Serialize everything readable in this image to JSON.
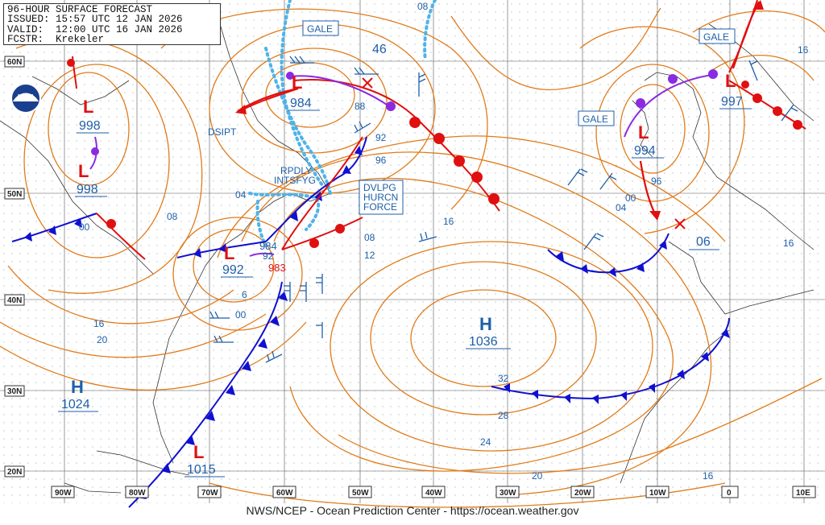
{
  "header": {
    "line1": "96-HOUR SURFACE FORECAST",
    "line2": "ISSUED: 15:57 UTC 12 JAN 2026",
    "line3": "VALID:  12:00 UTC 16 JAN 2026",
    "line4": "FCSTR:  Krekeler"
  },
  "footer": "NWS/NCEP - Ocean Prediction Center - https://ocean.weather.gov",
  "logo": "noaa-logo",
  "lat_labels": [
    "60N",
    "50N",
    "40N",
    "30N",
    "20N"
  ],
  "lon_labels": [
    "90W",
    "80W",
    "70W",
    "60W",
    "50W",
    "40W",
    "30W",
    "20W",
    "10W",
    "0",
    "10E"
  ],
  "pressure_centers": [
    {
      "type": "L",
      "value": "998"
    },
    {
      "type": "L",
      "value": "998"
    },
    {
      "type": "L",
      "value": "984"
    },
    {
      "type": "L",
      "value": "992"
    },
    {
      "type": "L",
      "value": "994"
    },
    {
      "type": "L",
      "value": "997"
    },
    {
      "type": "L",
      "value": "1015"
    },
    {
      "type": "H",
      "value": "1036"
    },
    {
      "type": "H",
      "value": "1024"
    }
  ],
  "warnings": {
    "gale_1": "GALE",
    "gale_2": "GALE",
    "gale_3": "GALE",
    "dvlpg_1": "DVLPG",
    "dvlpg_2": "HURCN",
    "dvlpg_3": "FORCE",
    "rpdly_1": "RPDLY",
    "rpdly_2": "INTSFYG",
    "dsipt": "DSIPT",
    "forming_984": "984",
    "forming_983": "983"
  },
  "isobar_labels": [
    "46",
    "08",
    "88",
    "92",
    "96",
    "04",
    "08",
    "00",
    "16",
    "08",
    "12",
    "16",
    "20",
    "00",
    "6",
    "92",
    "16",
    "96",
    "00",
    "04",
    "06",
    "16",
    "32",
    "28",
    "24",
    "20",
    "16",
    "16"
  ],
  "colors": {
    "isobar": "#e07b1a",
    "cold_front": "#1010d0",
    "warm_front": "#e01010",
    "occluded": "#8a2be2",
    "ice": "#4fb3e8",
    "text_blue": "#1f5fa8",
    "grid": "#555555"
  }
}
